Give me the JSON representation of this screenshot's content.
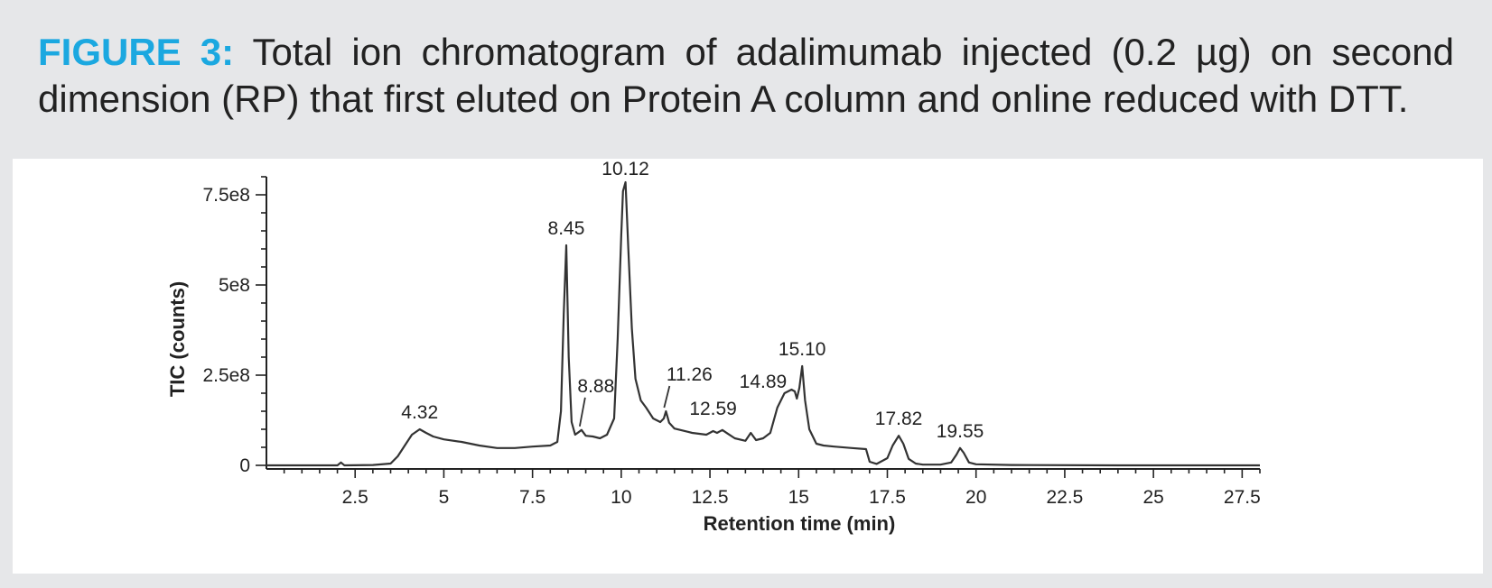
{
  "figure": {
    "label": "FIGURE 3:",
    "caption": "Total ion chromatogram of adalimumab injected (0.2 µg) on second dimension (RP) that first eluted on Protein A column and online reduced with DTT."
  },
  "chart_data": {
    "type": "line",
    "title": "",
    "xlabel": "Retention time (min)",
    "ylabel": "TIC (counts)",
    "xlim": [
      0,
      28
    ],
    "ylim": [
      0,
      800000000.0
    ],
    "x_ticks": [
      2.5,
      5,
      7.5,
      10,
      12.5,
      15,
      17.5,
      20,
      22.5,
      25,
      27.5
    ],
    "x_tick_labels": [
      "2.5",
      "5",
      "7.5",
      "10",
      "12.5",
      "15",
      "17.5",
      "20",
      "22.5",
      "25",
      "27.5"
    ],
    "y_ticks": [
      0,
      250000000,
      500000000,
      750000000
    ],
    "y_tick_labels": [
      "0",
      "2.5e8",
      "5e8",
      "7.5e8"
    ],
    "grid": false,
    "legend": "none",
    "series": [
      {
        "x": [
          0,
          2.0,
          2.1,
          2.2,
          3.0,
          3.5,
          3.7,
          3.9,
          4.1,
          4.32,
          4.5,
          4.7,
          5.0,
          5.5,
          6.0,
          6.5,
          7.0,
          7.5,
          8.0,
          8.2,
          8.3,
          8.38,
          8.45,
          8.52,
          8.6,
          8.7,
          8.8,
          8.88,
          9.0,
          9.2,
          9.4,
          9.6,
          9.8,
          9.9,
          10.0,
          10.05,
          10.12,
          10.2,
          10.3,
          10.4,
          10.55,
          10.7,
          10.9,
          11.1,
          11.2,
          11.26,
          11.35,
          11.5,
          12.0,
          12.4,
          12.59,
          12.7,
          12.85,
          13.0,
          13.2,
          13.5,
          13.65,
          13.8,
          14.0,
          14.2,
          14.4,
          14.6,
          14.8,
          14.89,
          14.95,
          15.02,
          15.1,
          15.18,
          15.3,
          15.5,
          15.7,
          16.0,
          16.5,
          16.9,
          17.0,
          17.2,
          17.5,
          17.65,
          17.82,
          17.95,
          18.1,
          18.3,
          18.5,
          19.0,
          19.3,
          19.45,
          19.55,
          19.65,
          19.8,
          20.0,
          21.0,
          24.0,
          28.0
        ],
        "y": [
          0,
          0,
          8000000,
          0,
          1000000,
          5000000,
          25000000,
          55000000,
          85000000,
          100000000,
          90000000,
          80000000,
          72000000,
          65000000,
          55000000,
          48000000,
          48000000,
          52000000,
          55000000,
          65000000,
          150000000,
          420000000,
          610000000,
          300000000,
          120000000,
          85000000,
          92000000,
          98000000,
          82000000,
          80000000,
          75000000,
          85000000,
          130000000,
          350000000,
          640000000,
          760000000,
          785000000,
          600000000,
          380000000,
          240000000,
          180000000,
          160000000,
          130000000,
          120000000,
          130000000,
          150000000,
          118000000,
          102000000,
          90000000,
          85000000,
          95000000,
          90000000,
          98000000,
          88000000,
          75000000,
          68000000,
          90000000,
          70000000,
          75000000,
          90000000,
          160000000,
          200000000,
          210000000,
          205000000,
          185000000,
          215000000,
          275000000,
          180000000,
          100000000,
          60000000,
          55000000,
          52000000,
          48000000,
          45000000,
          10000000,
          4000000,
          20000000,
          55000000,
          82000000,
          60000000,
          18000000,
          5000000,
          2000000,
          2000000,
          8000000,
          30000000,
          48000000,
          35000000,
          8000000,
          3000000,
          1000000,
          0,
          0
        ]
      }
    ],
    "annotations": [
      {
        "text": "4.32",
        "x": 4.32,
        "y": 100000000
      },
      {
        "text": "8.45",
        "x": 8.45,
        "y": 610000000
      },
      {
        "text": "8.88",
        "x": 8.88,
        "y": 98000000
      },
      {
        "text": "10.12",
        "x": 10.12,
        "y": 785000000
      },
      {
        "text": "11.26",
        "x": 11.26,
        "y": 150000000
      },
      {
        "text": "12.59",
        "x": 12.59,
        "y": 95000000
      },
      {
        "text": "14.89",
        "x": 14.89,
        "y": 205000000
      },
      {
        "text": "15.10",
        "x": 15.1,
        "y": 275000000
      },
      {
        "text": "17.82",
        "x": 17.82,
        "y": 82000000
      },
      {
        "text": "19.55",
        "x": 19.55,
        "y": 48000000
      }
    ]
  }
}
